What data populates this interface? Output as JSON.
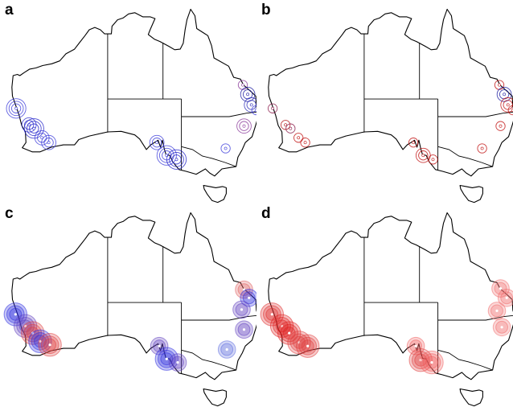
{
  "panels": [
    {
      "id": "a",
      "label": "a",
      "markers": [
        {
          "site": "sw-1",
          "lon": 114.1,
          "lat": -27.6,
          "color": "#3b3bd9",
          "rings": 3,
          "fill": false
        },
        {
          "site": "sw-2",
          "lon": 116.2,
          "lat": -30.4,
          "color": "#2f2fd0",
          "rings": 2,
          "fill": false
        },
        {
          "site": "sw-3",
          "lon": 117.0,
          "lat": -31.0,
          "color": "#2020c8",
          "rings": 3,
          "fill": false
        },
        {
          "site": "sw-4",
          "lon": 118.3,
          "lat": -32.6,
          "color": "#3b3bd9",
          "rings": 2,
          "fill": false
        },
        {
          "site": "sw-5",
          "lon": 119.4,
          "lat": -33.4,
          "color": "#3b3bd9",
          "rings": 2,
          "fill": false
        },
        {
          "site": "qld-1",
          "lon": 151.0,
          "lat": -23.6,
          "color": "#8a3a9a",
          "rings": 1,
          "fill": false
        },
        {
          "site": "qld-2",
          "lon": 151.8,
          "lat": -25.2,
          "color": "#1a1aa0",
          "rings": 2,
          "fill": false
        },
        {
          "site": "qld-3",
          "lon": 152.4,
          "lat": -27.0,
          "color": "#2a2ab8",
          "rings": 2,
          "fill": false
        },
        {
          "site": "qld-4",
          "lon": 153.2,
          "lat": -27.9,
          "color": "#3b3bd9",
          "rings": 1,
          "fill": false
        },
        {
          "site": "nsw-1",
          "lon": 151.2,
          "lat": -30.6,
          "color": "#8a3a9a",
          "rings": 2,
          "fill": false
        },
        {
          "site": "nsw-2",
          "lon": 148.2,
          "lat": -34.4,
          "color": "#3b3bd9",
          "rings": 1,
          "fill": false
        },
        {
          "site": "sa-1",
          "lon": 137.0,
          "lat": -33.4,
          "color": "#3b3bd9",
          "rings": 2,
          "fill": false
        },
        {
          "site": "sa-2",
          "lon": 138.6,
          "lat": -35.6,
          "color": "#3b3bd9",
          "rings": 3,
          "fill": false
        },
        {
          "site": "sa-3",
          "lon": 140.2,
          "lat": -36.3,
          "color": "#2020c8",
          "rings": 3,
          "fill": false
        }
      ]
    },
    {
      "id": "b",
      "label": "b",
      "markers": [
        {
          "site": "sw-1",
          "lon": 114.1,
          "lat": -27.6,
          "color": "#8a1a4a",
          "rings": 1,
          "fill": false
        },
        {
          "site": "sw-2",
          "lon": 116.2,
          "lat": -30.4,
          "color": "#b01010",
          "rings": 1,
          "fill": false
        },
        {
          "site": "sw-3",
          "lon": 117.0,
          "lat": -31.0,
          "color": "#8a1a4a",
          "rings": 1,
          "fill": false
        },
        {
          "site": "sw-4",
          "lon": 118.3,
          "lat": -32.6,
          "color": "#c01010",
          "rings": 1,
          "fill": false
        },
        {
          "site": "sw-5",
          "lon": 119.4,
          "lat": -33.4,
          "color": "#c01010",
          "rings": 1,
          "fill": false
        },
        {
          "site": "qld-1",
          "lon": 151.0,
          "lat": -23.6,
          "color": "#c01010",
          "rings": 1,
          "fill": false
        },
        {
          "site": "qld-2",
          "lon": 151.8,
          "lat": -25.2,
          "color": "#1a1aa0",
          "rings": 2,
          "fill": false
        },
        {
          "site": "qld-3",
          "lon": 152.4,
          "lat": -27.0,
          "color": "#c01010",
          "rings": 2,
          "fill": false
        },
        {
          "site": "qld-4",
          "lon": 153.2,
          "lat": -27.9,
          "color": "#c01010",
          "rings": 1,
          "fill": false
        },
        {
          "site": "nsw-1",
          "lon": 151.2,
          "lat": -30.6,
          "color": "#c01010",
          "rings": 1,
          "fill": false
        },
        {
          "site": "nsw-2",
          "lon": 148.2,
          "lat": -34.4,
          "color": "#c01010",
          "rings": 1,
          "fill": false
        },
        {
          "site": "sa-1",
          "lon": 137.0,
          "lat": -33.4,
          "color": "#c01010",
          "rings": 1,
          "fill": false
        },
        {
          "site": "sa-2",
          "lon": 138.6,
          "lat": -35.6,
          "color": "#c01010",
          "rings": 2,
          "fill": false
        },
        {
          "site": "sa-3",
          "lon": 140.2,
          "lat": -36.3,
          "color": "#c01010",
          "rings": 1,
          "fill": false
        }
      ]
    },
    {
      "id": "c",
      "label": "c",
      "markers": [
        {
          "site": "sw-1",
          "lon": 114.0,
          "lat": -28.0,
          "color": "#3030e0",
          "rings": 3,
          "fill": true
        },
        {
          "site": "sw-2",
          "lon": 115.6,
          "lat": -30.0,
          "color": "#6040c0",
          "rings": 3,
          "fill": true
        },
        {
          "site": "sw-3",
          "lon": 116.8,
          "lat": -31.2,
          "color": "#e04040",
          "rings": 3,
          "fill": true
        },
        {
          "site": "sw-4",
          "lon": 118.0,
          "lat": -32.6,
          "color": "#3030e0",
          "rings": 3,
          "fill": true
        },
        {
          "site": "sw-5",
          "lon": 119.6,
          "lat": -33.2,
          "color": "#e04040",
          "rings": 3,
          "fill": true
        },
        {
          "site": "qld-1",
          "lon": 151.2,
          "lat": -23.8,
          "color": "#e06060",
          "rings": 2,
          "fill": true
        },
        {
          "site": "qld-2",
          "lon": 152.0,
          "lat": -25.2,
          "color": "#3030e0",
          "rings": 2,
          "fill": true
        },
        {
          "site": "qld-3",
          "lon": 150.8,
          "lat": -27.2,
          "color": "#6040c0",
          "rings": 2,
          "fill": true
        },
        {
          "site": "nsw-1",
          "lon": 151.2,
          "lat": -30.6,
          "color": "#6040c0",
          "rings": 2,
          "fill": true
        },
        {
          "site": "nsw-2",
          "lon": 148.4,
          "lat": -34.0,
          "color": "#6070e0",
          "rings": 2,
          "fill": true
        },
        {
          "site": "sa-1",
          "lon": 137.4,
          "lat": -33.4,
          "color": "#6040c0",
          "rings": 2,
          "fill": true
        },
        {
          "site": "sa-2",
          "lon": 138.6,
          "lat": -35.6,
          "color": "#3030e0",
          "rings": 3,
          "fill": true
        },
        {
          "site": "sa-3",
          "lon": 140.4,
          "lat": -36.2,
          "color": "#6040c0",
          "rings": 2,
          "fill": true
        }
      ]
    },
    {
      "id": "d",
      "label": "d",
      "markers": [
        {
          "site": "sw-1",
          "lon": 114.0,
          "lat": -28.0,
          "color": "#e03030",
          "rings": 3,
          "fill": true
        },
        {
          "site": "sw-2",
          "lon": 115.6,
          "lat": -30.0,
          "color": "#e02020",
          "rings": 3,
          "fill": true
        },
        {
          "site": "sw-3",
          "lon": 116.8,
          "lat": -31.2,
          "color": "#e02020",
          "rings": 3,
          "fill": true
        },
        {
          "site": "sw-4",
          "lon": 118.4,
          "lat": -32.8,
          "color": "#e04040",
          "rings": 3,
          "fill": true
        },
        {
          "site": "sw-5",
          "lon": 119.8,
          "lat": -33.4,
          "color": "#e04040",
          "rings": 3,
          "fill": true
        },
        {
          "site": "qld-1",
          "lon": 151.2,
          "lat": -23.6,
          "color": "#f07070",
          "rings": 2,
          "fill": true
        },
        {
          "site": "qld-2",
          "lon": 152.2,
          "lat": -25.2,
          "color": "#f07070",
          "rings": 2,
          "fill": true
        },
        {
          "site": "qld-3",
          "lon": 150.6,
          "lat": -27.4,
          "color": "#f07070",
          "rings": 2,
          "fill": true
        },
        {
          "site": "nsw-1",
          "lon": 151.4,
          "lat": -30.2,
          "color": "#f07070",
          "rings": 2,
          "fill": true
        },
        {
          "site": "sa-1",
          "lon": 137.4,
          "lat": -33.4,
          "color": "#f06060",
          "rings": 2,
          "fill": true
        },
        {
          "site": "sa-2",
          "lon": 138.2,
          "lat": -35.8,
          "color": "#e04040",
          "rings": 3,
          "fill": true
        },
        {
          "site": "sa-3",
          "lon": 140.0,
          "lat": -36.2,
          "color": "#f06060",
          "rings": 3,
          "fill": true
        }
      ]
    }
  ]
}
